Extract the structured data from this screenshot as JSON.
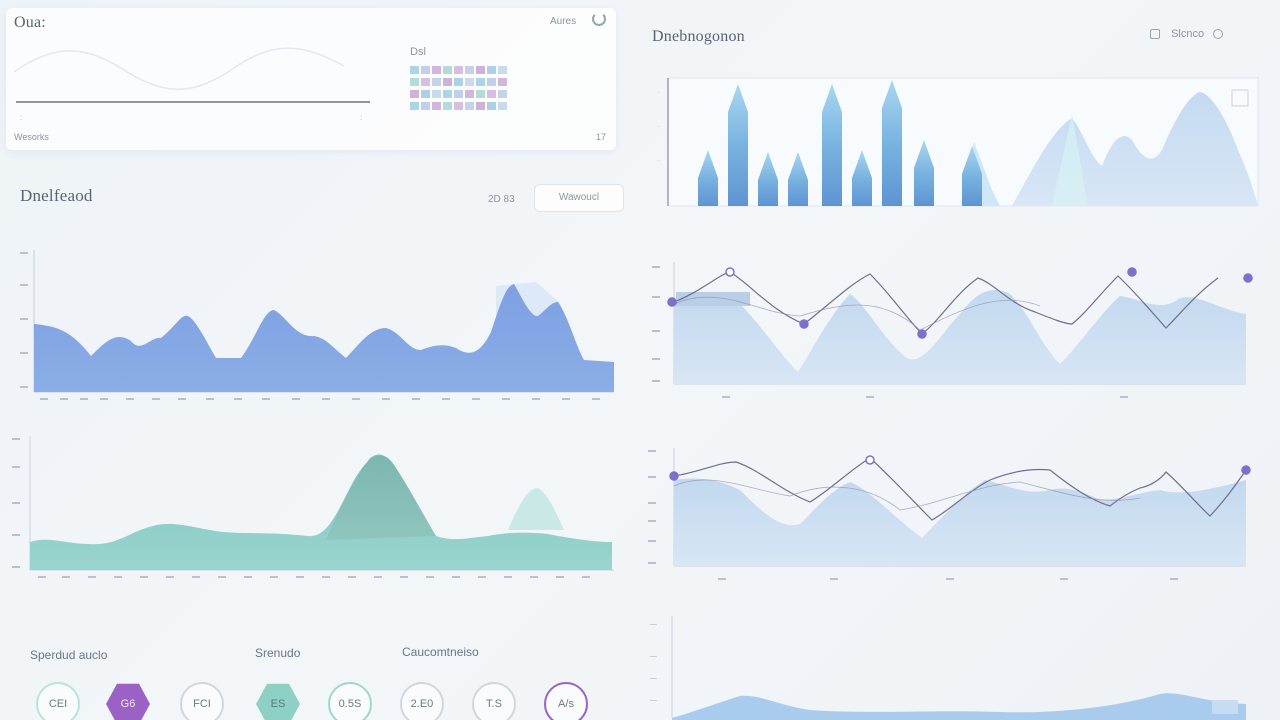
{
  "top_card": {
    "title": "Oua:",
    "action_label": "Aures",
    "footer_left": "Wesorks",
    "footer_right": "17",
    "legend_title": "Dsl"
  },
  "left_panel": {
    "title": "Dnelfeaod",
    "range_label": "2D 83",
    "filter_button": "Wawoucl"
  },
  "right_panel": {
    "title": "Dnebnogonon",
    "actions_label": "Slcnco"
  },
  "bottom_stats": {
    "groups": [
      "Sperdud auclo",
      "Srenudo",
      "Caucomtneiso"
    ],
    "items": [
      {
        "value": "CEI",
        "style": "ring",
        "color": "#b9e3dc"
      },
      {
        "value": "G6",
        "style": "hex",
        "color": "#9a62c4"
      },
      {
        "value": "FCI",
        "style": "ring",
        "color": "#d0d6de"
      },
      {
        "value": "ES",
        "style": "hex-teal",
        "color": "#8fd0c5"
      },
      {
        "value": "0.5S",
        "style": "ring",
        "color": "#9fd8cb"
      },
      {
        "value": "2.E0",
        "style": "ring",
        "color": "#d0d6de"
      },
      {
        "value": "T.S",
        "style": "ring",
        "color": "#d0d6de"
      },
      {
        "value": "A/s",
        "style": "ring",
        "color": "#9a62c4"
      }
    ]
  },
  "colors": {
    "blue_area": "#7b9fe0",
    "teal_area": "#7cc8c2",
    "light_area": "#c9dcf0",
    "line_dark": "#6d6f8f",
    "marker_purple": "#8e5bc4"
  },
  "icons": [
    "refresh-icon",
    "settings-icon",
    "close-icon"
  ]
}
